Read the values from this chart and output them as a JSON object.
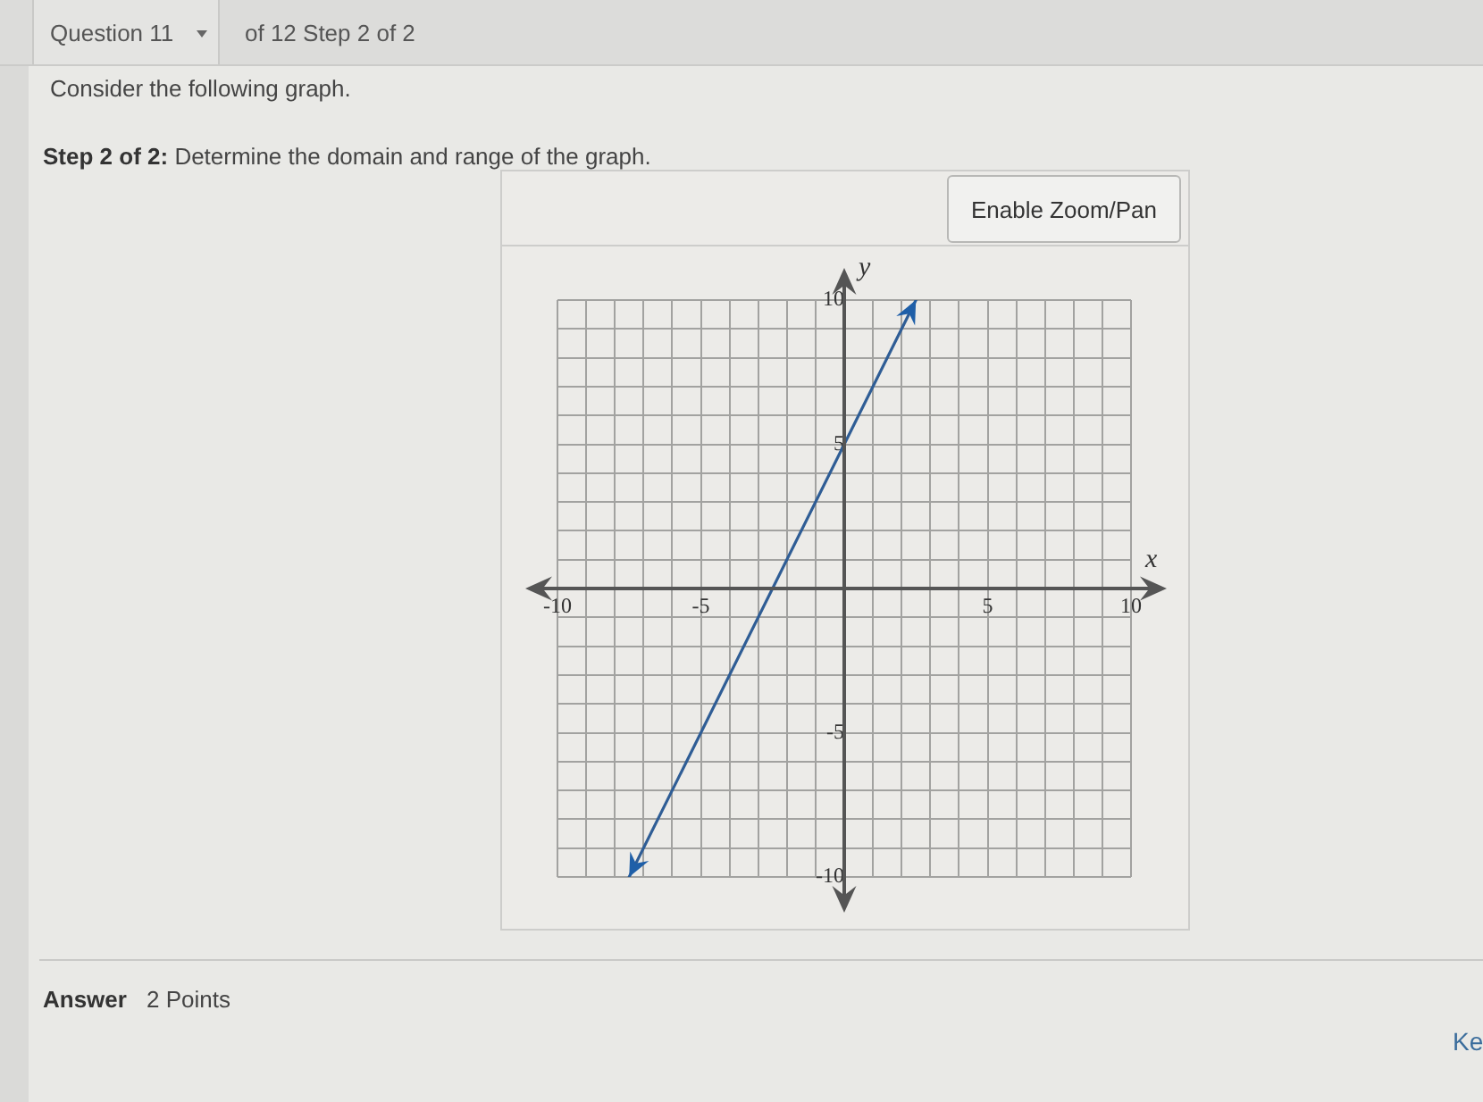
{
  "chart_data": {
    "type": "line",
    "title": "Consider the following graph.",
    "subtitle": "Step 2 of 2: Determine the domain and range of the graph.",
    "xlabel": "x",
    "ylabel": "y",
    "annotations": [
      "Question 11",
      "of 12 Step 2 of 2",
      "Enable Zoom/Pan",
      "Answer",
      "2 Points",
      "Ke"
    ],
    "x": [
      -7.5,
      0,
      2.5
    ],
    "series": [
      {
        "color": "#2f5d95",
        "values": [
          -10,
          5,
          10
        ]
      }
    ],
    "xlim": [
      -10,
      10
    ],
    "ylim": [
      -10,
      10
    ],
    "xticks": [
      -10,
      {
        "value": -9,
        "label": null
      },
      {
        "value": -8,
        "label": null
      },
      {
        "value": -7,
        "label": null
      },
      {
        "value": -6,
        "label": null
      },
      -5,
      {
        "value": -4,
        "label": null
      },
      {
        "value": -3,
        "label": null
      },
      {
        "value": -2,
        "label": null
      },
      {
        "value": -1,
        "label": null
      },
      {
        "value": 0,
        "label": null
      },
      {
        "value": 1,
        "label": null
      },
      {
        "value": 2,
        "label": null
      },
      {
        "value": 3,
        "label": null
      },
      {
        "value": 4,
        "label": null
      },
      5,
      {
        "value": 6,
        "label": null
      },
      {
        "value": 7,
        "label": null
      },
      {
        "value": 8,
        "label": null
      },
      {
        "value": 9,
        "label": null
      },
      10
    ],
    "yticks": [
      -10,
      {
        "value": -9,
        "label": null
      },
      {
        "value": -8,
        "label": null
      },
      {
        "value": -7,
        "label": null
      },
      {
        "value": -6,
        "label": null
      },
      -5,
      {
        "value": -4,
        "label": null
      },
      {
        "value": -3,
        "label": null
      },
      {
        "value": -2,
        "label": null
      },
      {
        "value": -1,
        "label": null
      },
      {
        "value": 0,
        "label": null
      },
      {
        "value": 1,
        "label": null
      },
      {
        "value": 2,
        "label": null
      },
      {
        "value": 3,
        "label": null
      },
      {
        "value": 4,
        "label": null
      },
      5,
      {
        "value": 6,
        "label": null
      },
      {
        "value": 7,
        "label": null
      },
      {
        "value": 8,
        "label": null
      },
      {
        "value": 9,
        "label": null
      },
      10
    ],
    "grid": true,
    "marker": "none",
    "line_style": "solid"
  }
}
